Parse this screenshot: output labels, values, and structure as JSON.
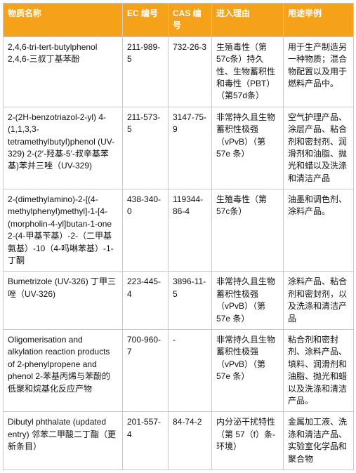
{
  "columns": [
    {
      "key": "name",
      "label": "物质名称"
    },
    {
      "key": "ec",
      "label": "EC 编号"
    },
    {
      "key": "cas",
      "label": "CAS 编号"
    },
    {
      "key": "reason",
      "label": "进入理由"
    },
    {
      "key": "use",
      "label": "用途举例"
    }
  ],
  "rows": [
    {
      "name": "2,4,6-tri-tert-butylphenol\n2,4,6-三叔丁基苯酚",
      "ec": "211-989-5",
      "cas": "732-26-3",
      "reason": "生殖毒性（第57c条）持久性、生物蓄积性和毒性（PBT）（第57d条）",
      "use": "用于生产制造另一种物质；混合物配置以及用于燃料产品中。"
    },
    {
      "name": "2-(2H-benzotriazol-2-yl)\n4-(1,1,3,3-tetramethylbutyl)phenol (UV-329)\n2-(2′-羟基-5′-叔辛基苯基)苯并三唑（UV-329)",
      "ec": "211-573-5",
      "cas": "3147-75-9",
      "reason": "非常持久且生物蓄积性极强（vPvB）（第57e 条）",
      "use": "空气护理产品、涂层产品、粘合剂和密封剂、润滑剂和油脂、抛光和蜡以及洗涤和清洁产品"
    },
    {
      "name": "2-(dimethylamino)-2-[(4-methylphenyl)methyl]-1-[4-(morpholin-4-yl]butan-1-one\n2-(4-甲基苄基）-2-（二甲基氨基）-10（4-吗啉苯基）-1-丁酮",
      "ec": "438-340-0",
      "cas": "119344-86-4",
      "reason": "生殖毒性（第57c条）",
      "use": "油墨和调色剂、涂料产品。"
    },
    {
      "name": "Bumetrizole (UV-326)\n丁甲三唑（UV-326)",
      "ec": "223-445-4",
      "cas": "3896-11-5",
      "reason": "非常持久且生物蓄积性极强（vPvB）（第57e 条）",
      "use": "涂料产品、粘合剂和密封剂，以及洗涤和清洁产品"
    },
    {
      "name": "Oligomerisation and alkylation reaction products of 2-phenylpropene and phenol\n2-苯基丙烯与苯酚的低聚和烷基化反应产物",
      "ec": "700-960-7",
      "cas": "-",
      "reason": "非常持久且生物蓄积性极强（vPvB）（第57e 条）",
      "use": "粘合剂和密封剂、涂料产品、填料、润滑剂和油脂、抛光和蜡以及洗涤和清洁产品。"
    },
    {
      "name": "Dibutyl phthalate (updated entry)\n邻苯二甲酸二丁酯（更新条目）",
      "ec": "201-557-4",
      "cas": "84-74-2",
      "reason": "内分泌干扰特性（第 57（f）条-环境）",
      "use": "金属加工液、洗涤和清洁产品、实验室化学品和聚合物"
    }
  ]
}
